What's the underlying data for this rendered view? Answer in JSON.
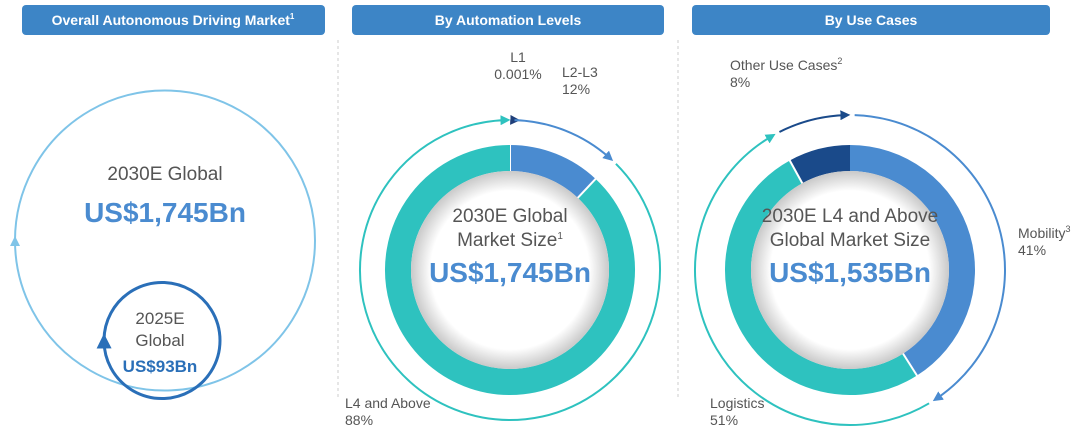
{
  "panel": {
    "title": "Overall Autonomous Driving Market",
    "title_sup": "1",
    "outer_label": "2030E Global",
    "outer_value": "US$1,745Bn",
    "inner_label_1": "2025E",
    "inner_label_2": "Global",
    "inner_value": "US$93Bn"
  },
  "chart_data": [
    {
      "type": "pie",
      "title": "By Automation Levels",
      "center_lines": [
        "2030E Global",
        "Market Size"
      ],
      "center_sup": "1",
      "center_value": "US$1,745Bn",
      "categories": [
        {
          "name": "L1"
        },
        {
          "name": "L2-L3"
        },
        {
          "name": "L4 and Above"
        }
      ],
      "values": [
        0.001,
        12,
        88
      ],
      "value_labels": [
        "0.001%",
        "12%",
        "88%"
      ],
      "colors": [
        "#1f3f7a",
        "#4a8bd0",
        "#2ec2bf"
      ]
    },
    {
      "type": "pie",
      "title": "By Use Cases",
      "center_lines": [
        "2030E L4 and Above",
        "Global Market Size"
      ],
      "center_value": "US$1,535Bn",
      "categories": [
        {
          "name": "Mobility",
          "sup": "3"
        },
        {
          "name": "Logistics"
        },
        {
          "name": "Other Use Cases",
          "sup": "2"
        }
      ],
      "values": [
        41,
        51,
        8
      ],
      "value_labels": [
        "41%",
        "51%",
        "8%"
      ],
      "colors": [
        "#4a8bd0",
        "#2ec2bf",
        "#1a4a8a"
      ]
    }
  ]
}
